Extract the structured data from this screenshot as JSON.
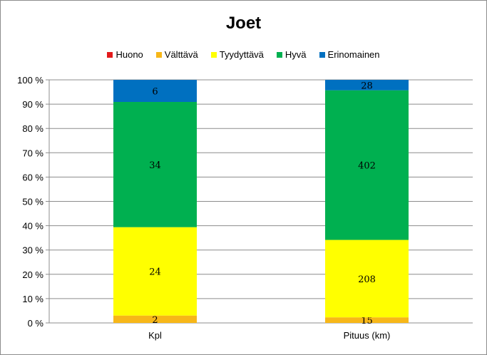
{
  "chart_data": {
    "type": "bar",
    "stacked": "percent",
    "title": "Joet",
    "categories": [
      "Kpl",
      "Pituus (km)"
    ],
    "series": [
      {
        "name": "Huono",
        "color": "#e31a1c",
        "values": [
          0,
          0
        ],
        "labels": [
          "",
          ""
        ]
      },
      {
        "name": "Välttävä",
        "color": "#f7b718",
        "values": [
          2,
          15
        ],
        "labels": [
          "2",
          "15"
        ]
      },
      {
        "name": "Tyydyttävä",
        "color": "#ffff00",
        "values": [
          24,
          208
        ],
        "labels": [
          "24",
          "208"
        ]
      },
      {
        "name": "Hyvä",
        "color": "#00b050",
        "values": [
          34,
          402
        ],
        "labels": [
          "34",
          "402"
        ]
      },
      {
        "name": "Erinomainen",
        "color": "#0070c0",
        "values": [
          6,
          28
        ],
        "labels": [
          "6",
          "28"
        ]
      }
    ],
    "y_ticks": [
      "0 %",
      "10 %",
      "20 %",
      "30 %",
      "40 %",
      "50 %",
      "60 %",
      "70 %",
      "80 %",
      "90 %",
      "100 %"
    ],
    "ylim": [
      0,
      100
    ],
    "grid": true,
    "legend": "top-center"
  }
}
